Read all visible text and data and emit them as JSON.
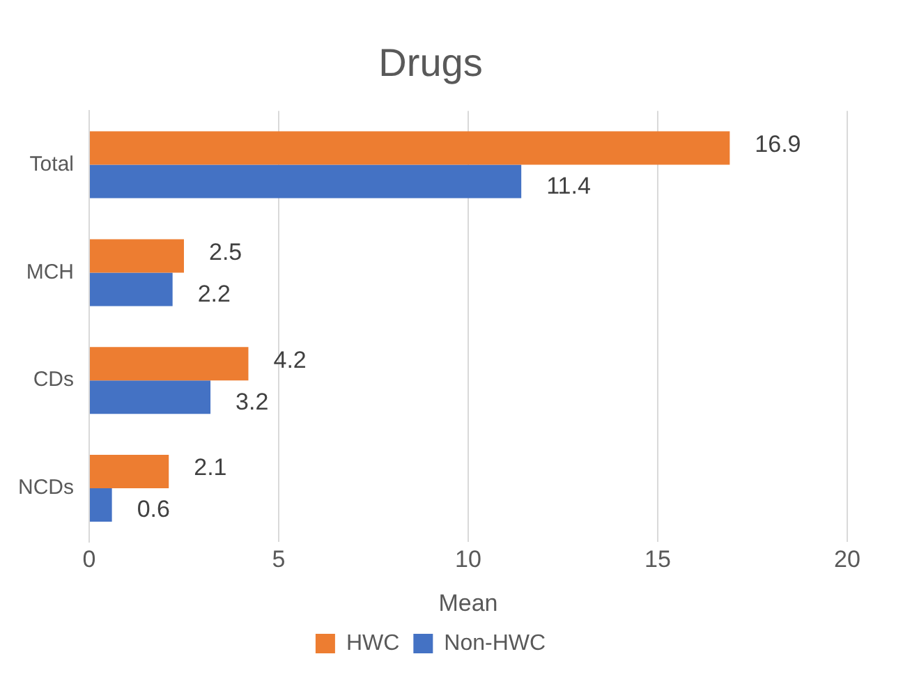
{
  "chart_data": {
    "type": "bar",
    "orientation": "horizontal",
    "title": "Drugs",
    "xlabel": "Mean",
    "categories": [
      "Total",
      "MCH",
      "CDs",
      "NCDs"
    ],
    "series": [
      {
        "name": "HWC",
        "color": "#ed7d31",
        "values": [
          16.9,
          2.5,
          4.2,
          2.1
        ]
      },
      {
        "name": "Non-HWC",
        "color": "#4472c4",
        "values": [
          11.4,
          2.2,
          3.2,
          0.6
        ]
      }
    ],
    "xlim": [
      0,
      20
    ],
    "xticks": [
      0,
      5,
      10,
      15,
      20
    ],
    "grid": "x",
    "legend": "bottom",
    "data_labels": true
  }
}
